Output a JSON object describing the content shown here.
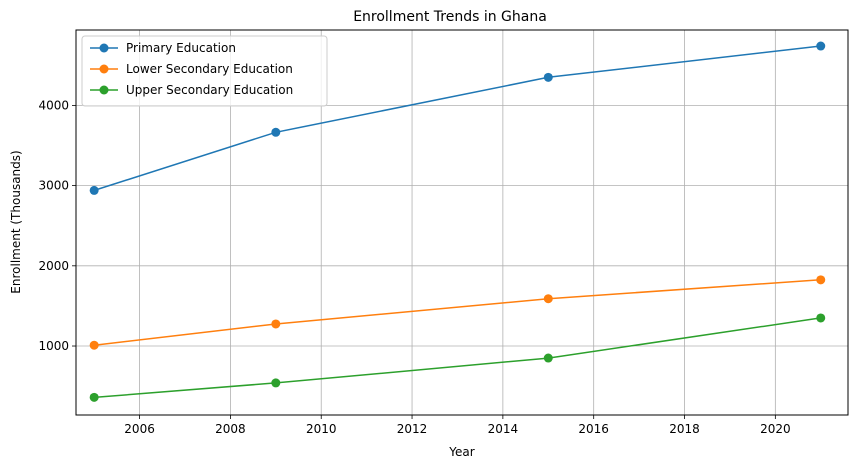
{
  "chart_data": {
    "type": "line",
    "title": "Enrollment Trends in Ghana",
    "xlabel": "Year",
    "ylabel": "Enrollment (Thousands)",
    "xlim": [
      2004.6,
      2021.6
    ],
    "ylim": [
      140,
      4940
    ],
    "xticks": [
      2006,
      2008,
      2010,
      2012,
      2014,
      2016,
      2018,
      2020
    ],
    "yticks": [
      1000,
      2000,
      3000,
      4000
    ],
    "grid": true,
    "legend_position": "top-left",
    "x": [
      2005,
      2009,
      2015,
      2021
    ],
    "series": [
      {
        "name": "Primary Education",
        "color": "#1f77b4",
        "values": [
          2940,
          3665,
          4350,
          4740
        ]
      },
      {
        "name": "Lower Secondary Education",
        "color": "#ff7f0e",
        "values": [
          1010,
          1275,
          1590,
          1825
        ]
      },
      {
        "name": "Upper Secondary Education",
        "color": "#2ca02c",
        "values": [
          360,
          540,
          850,
          1350
        ]
      }
    ]
  }
}
